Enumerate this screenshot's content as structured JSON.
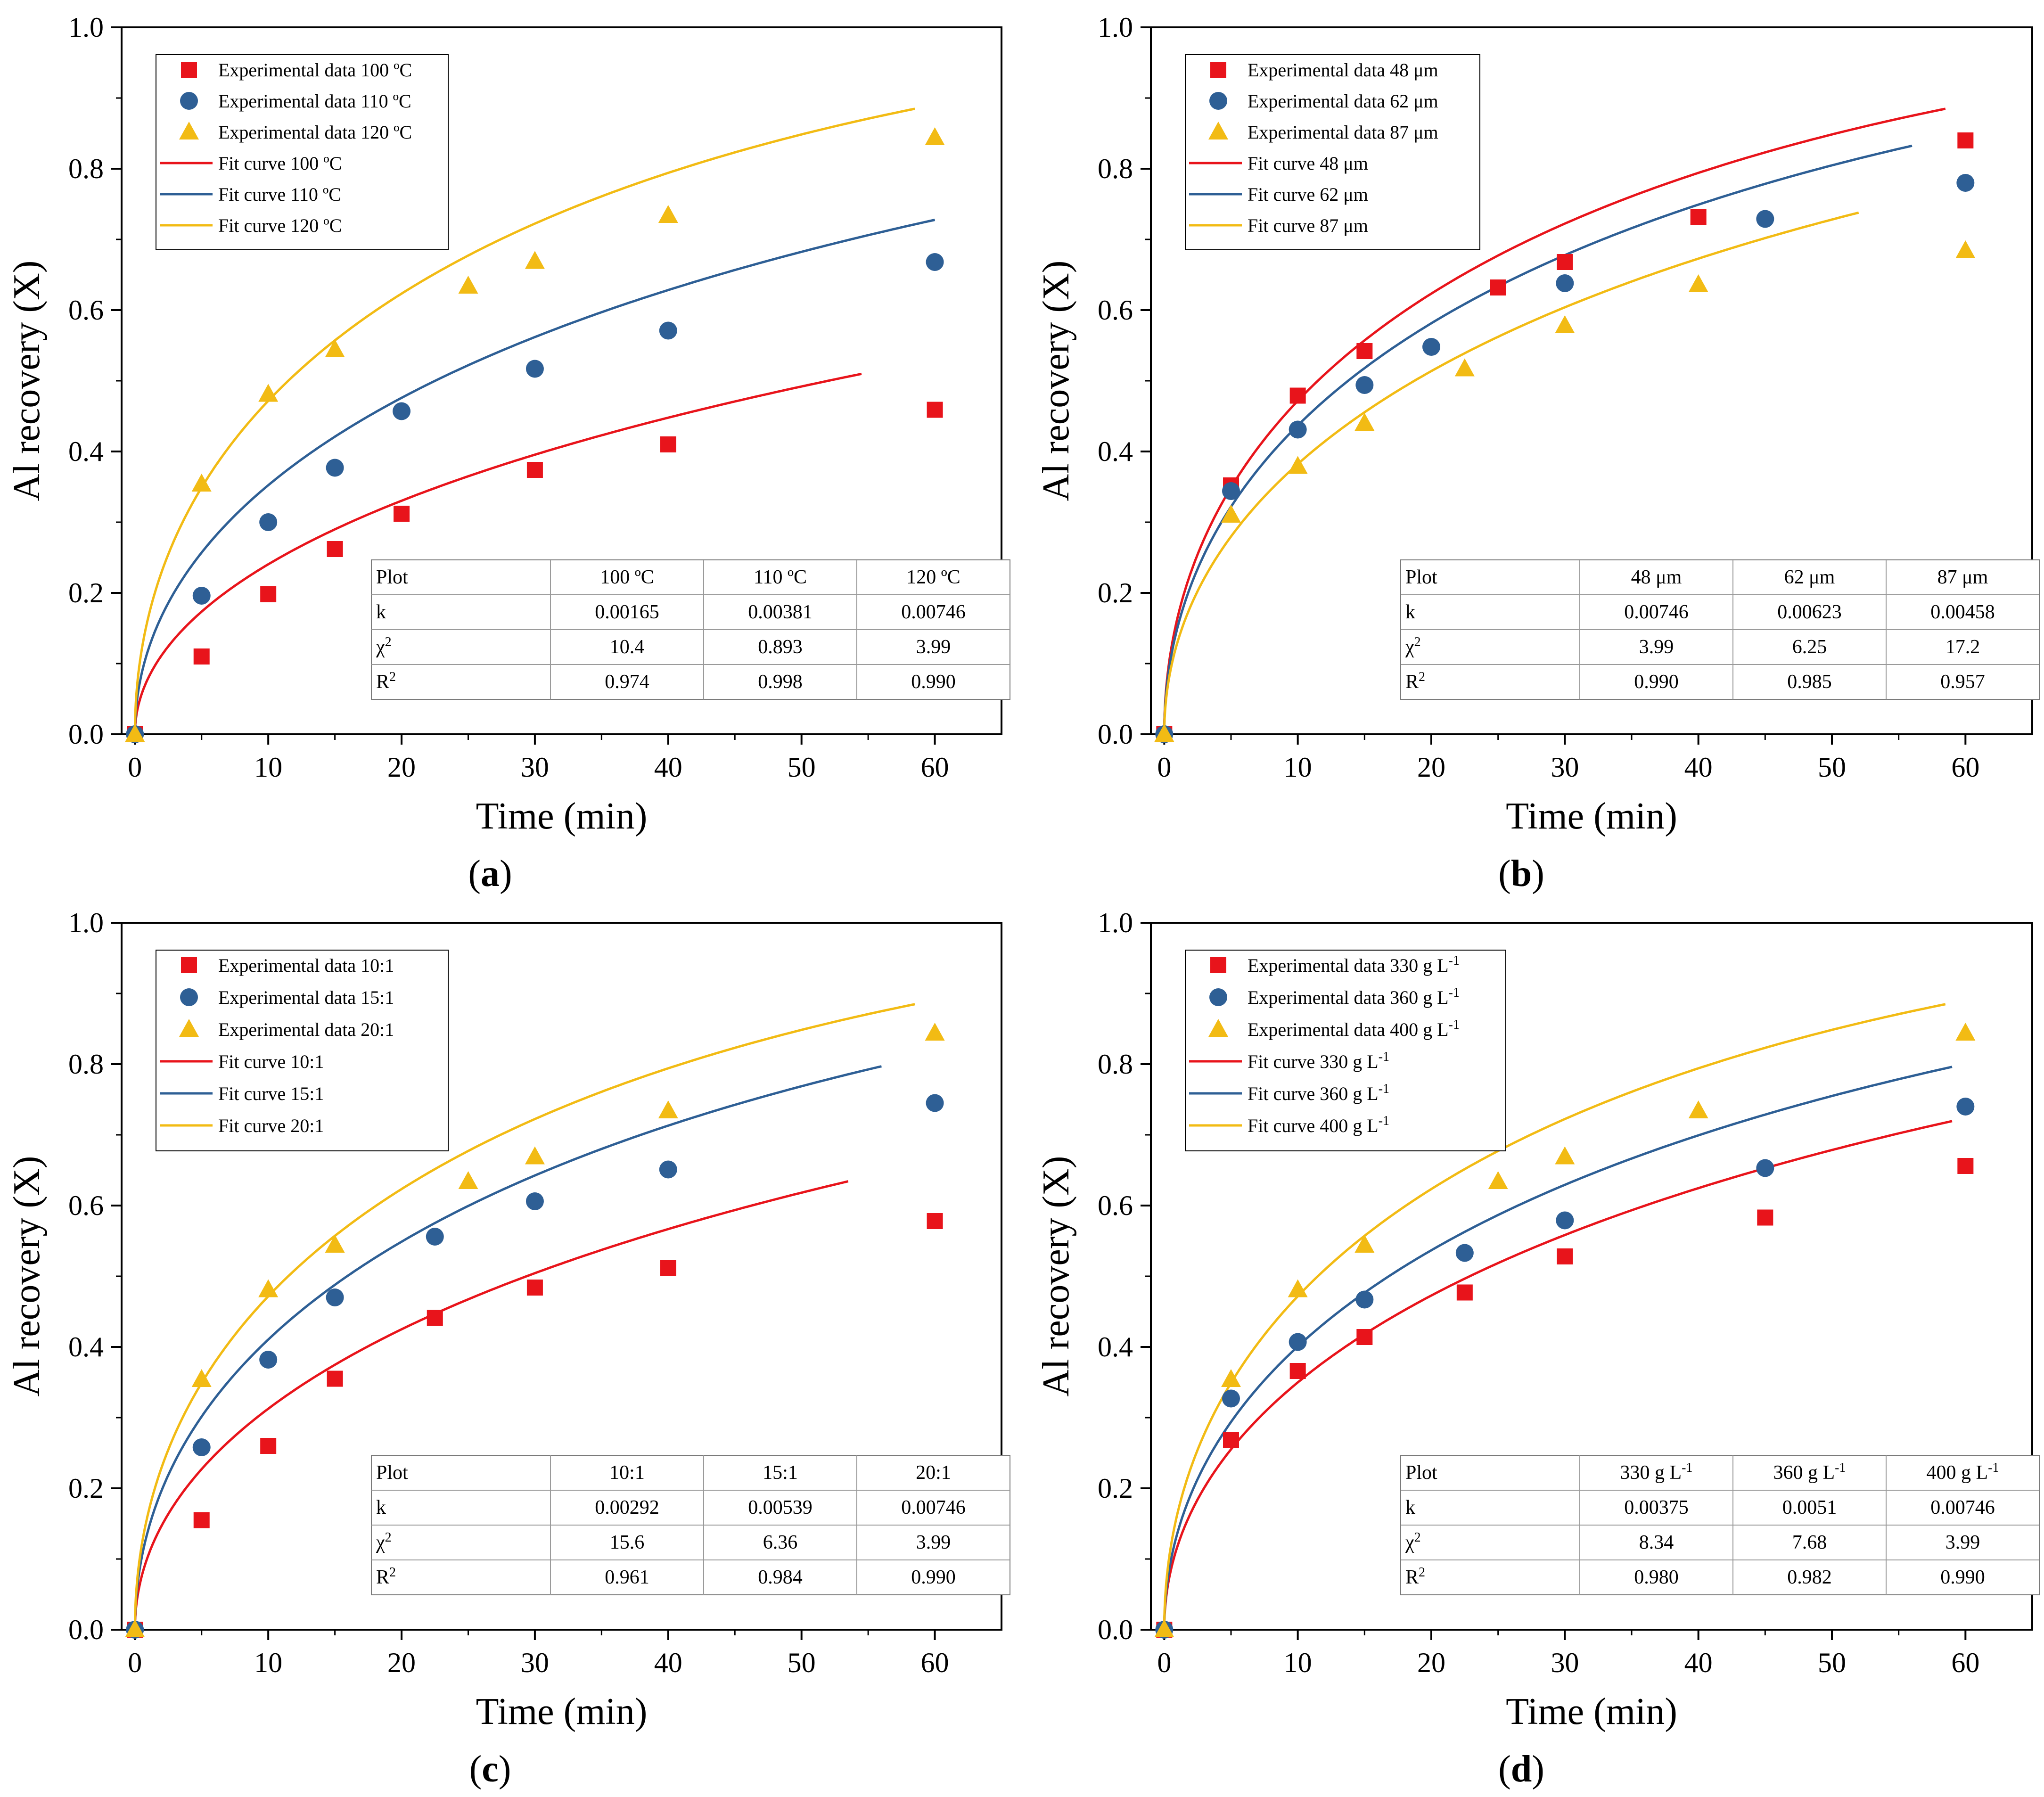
{
  "colors": {
    "red": "#e8141b",
    "blue": "#2e5f95",
    "yellow": "#f2bb14"
  },
  "axis": {
    "xlabel": "Time (min)",
    "ylabel": "Al recovery (X)",
    "xlim": [
      -1,
      65
    ],
    "ylim": [
      0,
      1
    ],
    "xticks": [
      "0",
      "10",
      "20",
      "30",
      "40",
      "50",
      "60"
    ],
    "yticks": [
      "0.0",
      "0.2",
      "0.4",
      "0.6",
      "0.8",
      "1.0"
    ]
  },
  "chart_data": [
    {
      "id": "a",
      "label": "a",
      "type": "scatter+line",
      "title": "",
      "xlabel": "Time (min)",
      "ylabel": "Al recovery (X)",
      "xlim": [
        -1,
        65
      ],
      "ylim": [
        0,
        1
      ],
      "legend": {
        "position": "top-left",
        "entries": [
          "Experimental data 100 ºC",
          "Experimental data 110 ºC",
          "Experimental data 120 ºC",
          "Fit curve 100 ºC",
          "Fit curve 110 ºC",
          "Fit curve 120 ºC"
        ]
      },
      "series": [
        {
          "name": "Experimental data 100 ºC",
          "marker": "square",
          "color": "#e8141b",
          "x": [
            0,
            5,
            10,
            15,
            20,
            30,
            40,
            60
          ],
          "y": [
            0,
            0.11,
            0.198,
            0.262,
            0.312,
            0.374,
            0.41,
            0.459
          ]
        },
        {
          "name": "Experimental data 110 ºC",
          "marker": "circle",
          "color": "#2e5f95",
          "x": [
            0,
            5,
            10,
            15,
            20,
            30,
            40,
            60
          ],
          "y": [
            0,
            0.196,
            0.3,
            0.377,
            0.457,
            0.517,
            0.571,
            0.668
          ]
        },
        {
          "name": "Experimental data 120 ºC",
          "marker": "triangle",
          "color": "#f2bb14",
          "x": [
            0,
            5,
            10,
            15,
            25,
            30,
            40,
            60
          ],
          "y": [
            0,
            0.354,
            0.481,
            0.544,
            0.634,
            0.669,
            0.734,
            0.844
          ]
        }
      ],
      "fits": [
        {
          "name": "Fit curve 100 ºC",
          "color": "#e8141b",
          "k": 0.00165,
          "x_end": 54.5
        },
        {
          "name": "Fit curve 110 ºC",
          "color": "#2e5f95",
          "k": 0.00381,
          "x_end": 60
        },
        {
          "name": "Fit curve 120 ºC",
          "color": "#f2bb14",
          "k": 0.00746,
          "x_end": 58.5
        }
      ],
      "table": {
        "header": [
          "Plot",
          "100 ºC",
          "110 ºC",
          "120 ºC"
        ],
        "rows": [
          {
            "label": "k",
            "values": [
              "0.00165",
              "0.00381",
              "0.00746"
            ]
          },
          {
            "label": "χ",
            "sup": "2",
            "values": [
              "10.4",
              "0.893",
              "3.99"
            ]
          },
          {
            "label": "R",
            "sup": "2",
            "values": [
              "0.974",
              "0.998",
              "0.990"
            ]
          }
        ]
      }
    },
    {
      "id": "b",
      "label": "b",
      "type": "scatter+line",
      "title": "",
      "xlabel": "Time (min)",
      "ylabel": "Al recovery (X)",
      "xlim": [
        -1,
        65
      ],
      "ylim": [
        0,
        1
      ],
      "legend": {
        "position": "top-left",
        "entries": [
          "Experimental data 48 μm",
          "Experimental data 62 μm",
          "Experimental data 87 μm",
          "Fit curve 48 μm",
          "Fit curve 62 μm",
          "Fit curve 87 μm"
        ]
      },
      "series": [
        {
          "name": "Experimental data 48 μm",
          "marker": "square",
          "color": "#e8141b",
          "x": [
            0,
            5,
            10,
            15,
            25,
            30,
            40,
            60
          ],
          "y": [
            0,
            0.352,
            0.479,
            0.542,
            0.632,
            0.668,
            0.732,
            0.84
          ]
        },
        {
          "name": "Experimental data 62 μm",
          "marker": "circle",
          "color": "#2e5f95",
          "x": [
            0,
            5,
            10,
            15,
            20,
            30,
            45,
            60
          ],
          "y": [
            0,
            0.344,
            0.431,
            0.494,
            0.548,
            0.638,
            0.729,
            0.78
          ]
        },
        {
          "name": "Experimental data 87 μm",
          "marker": "triangle",
          "color": "#f2bb14",
          "x": [
            0,
            5,
            10,
            15,
            22.5,
            30,
            40,
            60
          ],
          "y": [
            0,
            0.31,
            0.379,
            0.44,
            0.517,
            0.578,
            0.636,
            0.684
          ]
        }
      ],
      "fits": [
        {
          "name": "Fit curve 48 μm",
          "color": "#e8141b",
          "k": 0.00746,
          "x_end": 58.5
        },
        {
          "name": "Fit curve 62 μm",
          "color": "#2e5f95",
          "k": 0.00623,
          "x_end": 56
        },
        {
          "name": "Fit curve 87 μm",
          "color": "#f2bb14",
          "k": 0.00458,
          "x_end": 52
        }
      ],
      "table": {
        "header": [
          "Plot",
          "48 μm",
          "62 μm",
          "87 μm"
        ],
        "rows": [
          {
            "label": "k",
            "values": [
              "0.00746",
              "0.00623",
              "0.00458"
            ]
          },
          {
            "label": "χ",
            "sup": "2",
            "values": [
              "3.99",
              "6.25",
              "17.2"
            ]
          },
          {
            "label": "R",
            "sup": "2",
            "values": [
              "0.990",
              "0.985",
              "0.957"
            ]
          }
        ]
      }
    },
    {
      "id": "c",
      "label": "c",
      "type": "scatter+line",
      "title": "",
      "xlabel": "Time (min)",
      "ylabel": "Al recovery (X)",
      "xlim": [
        -1,
        65
      ],
      "ylim": [
        0,
        1
      ],
      "legend": {
        "position": "top-left",
        "entries": [
          "Experimental data 10:1",
          "Experimental data 15:1",
          "Experimental data 20:1",
          "Fit curve 10:1",
          "Fit curve 15:1",
          "Fit curve 20:1"
        ]
      },
      "series": [
        {
          "name": "Experimental data 10:1",
          "marker": "square",
          "color": "#e8141b",
          "x": [
            0,
            5,
            10,
            15,
            22.5,
            30,
            40,
            60
          ],
          "y": [
            0,
            0.155,
            0.26,
            0.355,
            0.441,
            0.484,
            0.512,
            0.578
          ]
        },
        {
          "name": "Experimental data 15:1",
          "marker": "circle",
          "color": "#2e5f95",
          "x": [
            0,
            5,
            10,
            15,
            22.5,
            30,
            40,
            60
          ],
          "y": [
            0,
            0.258,
            0.382,
            0.47,
            0.556,
            0.606,
            0.651,
            0.745
          ]
        },
        {
          "name": "Experimental data 20:1",
          "marker": "triangle",
          "color": "#f2bb14",
          "x": [
            0,
            5,
            10,
            15,
            25,
            30,
            40,
            60
          ],
          "y": [
            0,
            0.354,
            0.481,
            0.544,
            0.634,
            0.669,
            0.734,
            0.844
          ]
        }
      ],
      "fits": [
        {
          "name": "Fit curve 10:1",
          "color": "#e8141b",
          "k": 0.00292,
          "x_end": 53.5
        },
        {
          "name": "Fit curve 15:1",
          "color": "#2e5f95",
          "k": 0.00539,
          "x_end": 56
        },
        {
          "name": "Fit curve 20:1",
          "color": "#f2bb14",
          "k": 0.00746,
          "x_end": 58.5
        }
      ],
      "table": {
        "header": [
          "Plot",
          "10:1",
          "15:1",
          "20:1"
        ],
        "rows": [
          {
            "label": "k",
            "values": [
              "0.00292",
              "0.00539",
              "0.00746"
            ]
          },
          {
            "label": "χ",
            "sup": "2",
            "values": [
              "15.6",
              "6.36",
              "3.99"
            ]
          },
          {
            "label": "R",
            "sup": "2",
            "values": [
              "0.961",
              "0.984",
              "0.990"
            ]
          }
        ]
      }
    },
    {
      "id": "d",
      "label": "d",
      "type": "scatter+line",
      "title": "",
      "xlabel": "Time (min)",
      "ylabel": "Al recovery (X)",
      "xlim": [
        -1,
        65
      ],
      "ylim": [
        0,
        1
      ],
      "legend": {
        "position": "top-left",
        "entries": [
          "Experimental data 330 g L",
          "Experimental data 360 g L",
          "Experimental data 400 g L",
          "Fit curve 330 g L",
          "Fit curve 360 g L",
          "Fit curve 400 g L"
        ],
        "sup": "-1"
      },
      "series": [
        {
          "name": "Experimental data 330 g L",
          "marker": "square",
          "color": "#e8141b",
          "x": [
            0,
            5,
            10,
            15,
            22.5,
            30,
            45,
            60
          ],
          "y": [
            0,
            0.268,
            0.366,
            0.414,
            0.477,
            0.528,
            0.583,
            0.656
          ]
        },
        {
          "name": "Experimental data 360 g L",
          "marker": "circle",
          "color": "#2e5f95",
          "x": [
            0,
            5,
            10,
            15,
            22.5,
            30,
            45,
            60
          ],
          "y": [
            0,
            0.327,
            0.407,
            0.467,
            0.533,
            0.579,
            0.653,
            0.74
          ]
        },
        {
          "name": "Experimental data 400 g L",
          "marker": "triangle",
          "color": "#f2bb14",
          "x": [
            0,
            5,
            10,
            15,
            25,
            30,
            40,
            60
          ],
          "y": [
            0,
            0.354,
            0.481,
            0.544,
            0.634,
            0.669,
            0.734,
            0.844
          ]
        }
      ],
      "fits": [
        {
          "name": "Fit curve 330 g L",
          "color": "#e8141b",
          "k": 0.00375,
          "x_end": 59
        },
        {
          "name": "Fit curve 360 g L",
          "color": "#2e5f95",
          "k": 0.0051,
          "x_end": 59
        },
        {
          "name": "Fit curve 400 g L",
          "color": "#f2bb14",
          "k": 0.00746,
          "x_end": 58.5
        }
      ],
      "table": {
        "header": [
          "Plot",
          "330 g L",
          "360 g L",
          "400 g L"
        ],
        "header_sup": "-1",
        "rows": [
          {
            "label": "k",
            "values": [
              "0.00375",
              "0.0051",
              "0.00746"
            ]
          },
          {
            "label": "χ",
            "sup": "2",
            "values": [
              "8.34",
              "7.68",
              "3.99"
            ]
          },
          {
            "label": "R",
            "sup": "2",
            "values": [
              "0.980",
              "0.982",
              "0.990"
            ]
          }
        ]
      }
    }
  ]
}
